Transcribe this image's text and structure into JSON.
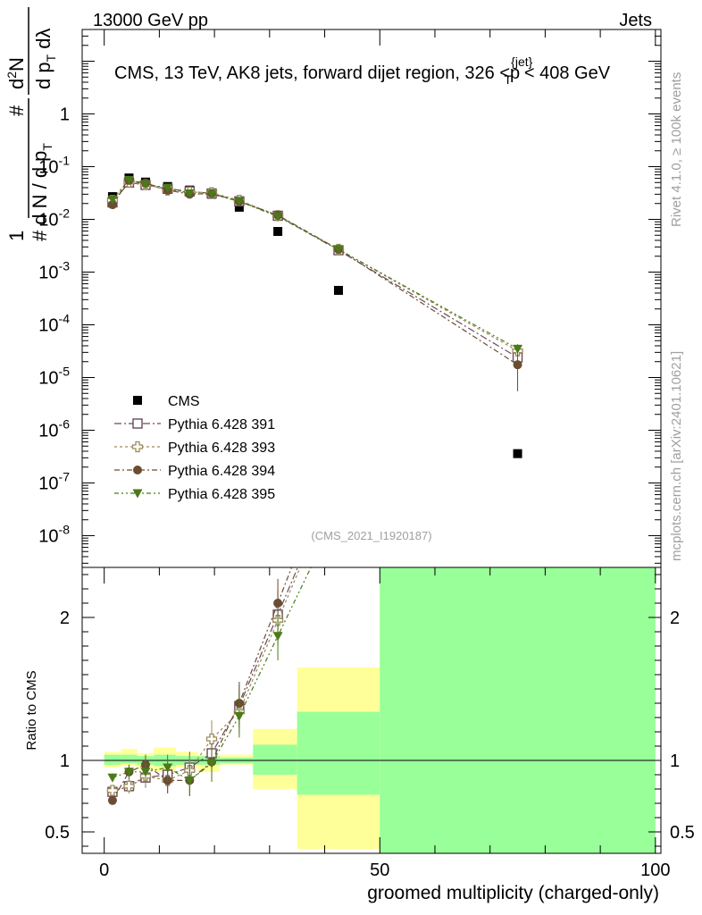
{
  "header": {
    "left": "13000 GeV pp",
    "right": "Jets"
  },
  "side_labels": {
    "rivet": "Rivet 4.1.0, ≥ 100k events",
    "mcplots": "mcplots.cern.ch [arXiv:2401.10621]"
  },
  "chart_data": [
    {
      "type": "scatter",
      "panel": "main",
      "title": "CMS, 13 TeV, AK8 jets, forward dijet region, 326 <p_T^{jet}< 408 GeV",
      "ylabel": "1/dN/dp_T d²N/dp_T dλ",
      "analysis_tag": "(CMS_2021_I1920187)",
      "xlim": [
        -4,
        101
      ],
      "ylim": [
        2.5e-09,
        40
      ],
      "log_y": true,
      "y_ticks": [
        "10^{-8}",
        "10^{-7}",
        "10^{-6}",
        "10^{-5}",
        "10^{-4}",
        "10^{-3}",
        "10^{-2}",
        "10^{-1}",
        "1"
      ],
      "legend_position": "lower-left",
      "series": [
        {
          "name": "CMS",
          "style": "square-filled",
          "color": "#000000",
          "x": [
            1.5,
            4.5,
            7.5,
            11.5,
            15.5,
            19.5,
            24.5,
            31.5,
            42.5,
            75
          ],
          "y": [
            0.027,
            0.061,
            0.051,
            0.042,
            0.036,
            0.03,
            0.017,
            0.0059,
            0.00045,
            3.6e-07
          ]
        },
        {
          "name": "Pythia 6.428 391",
          "style": "square-open",
          "color": "#6a4a5a",
          "dash": "8 3 2 3",
          "x": [
            1.5,
            4.5,
            7.5,
            11.5,
            15.5,
            19.5,
            24.5,
            31.5,
            42.5,
            75
          ],
          "y": [
            0.021,
            0.05,
            0.045,
            0.038,
            0.034,
            0.031,
            0.022,
            0.0117,
            0.0026,
            2.4e-05
          ],
          "yerr": [
            0.0012,
            0.002,
            0.002,
            0.0016,
            0.0014,
            0.0012,
            0.0009,
            0.0005,
            0.00012,
            9e-06
          ]
        },
        {
          "name": "Pythia 6.428 393",
          "style": "cross-open",
          "color": "#9b8b5a",
          "dash": "3 3",
          "x": [
            1.5,
            4.5,
            7.5,
            11.5,
            15.5,
            19.5,
            24.5,
            31.5,
            42.5,
            75
          ],
          "y": [
            0.023,
            0.051,
            0.046,
            0.036,
            0.033,
            0.032,
            0.023,
            0.0118,
            0.0027,
            3.2e-05
          ],
          "yerr": [
            0.0012,
            0.002,
            0.002,
            0.0016,
            0.0014,
            0.0012,
            0.0009,
            0.0005,
            0.00012,
            8e-06
          ]
        },
        {
          "name": "Pythia 6.428 394",
          "style": "circle-filled",
          "color": "#6b4d32",
          "dash": "6 3 2 3",
          "x": [
            1.5,
            4.5,
            7.5,
            11.5,
            15.5,
            19.5,
            24.5,
            31.5,
            42.5,
            75
          ],
          "y": [
            0.019,
            0.055,
            0.049,
            0.036,
            0.03,
            0.031,
            0.022,
            0.012,
            0.0027,
            1.75e-05
          ],
          "yerr": [
            0.0012,
            0.002,
            0.002,
            0.0016,
            0.0014,
            0.0012,
            0.0009,
            0.0005,
            0.00012,
            1.2e-05
          ]
        },
        {
          "name": "Pythia 6.428 395",
          "style": "triangle-down-filled",
          "color": "#4a7a1a",
          "dash": "5 3 2 3 2 3",
          "x": [
            1.5,
            4.5,
            7.5,
            11.5,
            15.5,
            19.5,
            24.5,
            31.5,
            42.5,
            75
          ],
          "y": [
            0.024,
            0.056,
            0.046,
            0.04,
            0.031,
            0.03,
            0.022,
            0.0113,
            0.0027,
            3.5e-05
          ],
          "yerr": [
            0.0012,
            0.002,
            0.002,
            0.0016,
            0.0014,
            0.0012,
            0.0009,
            0.0005,
            0.00012,
            8e-06
          ]
        }
      ]
    },
    {
      "type": "scatter",
      "panel": "ratio",
      "xlabel": "groomed multiplicity (charged-only)",
      "ylabel": "Ratio to CMS",
      "xlim": [
        -4,
        101
      ],
      "ylim": [
        0.35,
        2.35
      ],
      "x_ticks": [
        0,
        50,
        100
      ],
      "y_ticks": [
        0.5,
        1,
        2
      ],
      "uncertainty_bands": {
        "edges": [
          0,
          3,
          6,
          9,
          13,
          17,
          21,
          27,
          35,
          50,
          100
        ],
        "inner": [
          [
            0.97,
            1.04
          ],
          [
            0.98,
            1.04
          ],
          [
            0.97,
            1.03
          ],
          [
            0.96,
            1.04
          ],
          [
            0.97,
            1.03
          ],
          [
            0.97,
            1.03
          ],
          [
            0.98,
            1.02
          ],
          [
            0.9,
            1.11
          ],
          [
            0.76,
            1.34
          ],
          [
            0.0,
            3.0
          ]
        ],
        "outer": [
          [
            0.95,
            1.06
          ],
          [
            0.96,
            1.08
          ],
          [
            0.94,
            1.05
          ],
          [
            0.92,
            1.09
          ],
          [
            0.95,
            1.06
          ],
          [
            0.92,
            1.04
          ],
          [
            0.97,
            1.04
          ],
          [
            0.8,
            1.22
          ],
          [
            0.38,
            1.65
          ],
          [
            0.0,
            3.0
          ]
        ],
        "inner_color": "#99ff99",
        "outer_color": "#ffff99"
      },
      "series": [
        {
          "name": "Pythia 6.428 391",
          "x": [
            1.5,
            4.5,
            7.5,
            11.5,
            15.5,
            19.5,
            24.5,
            31.5
          ],
          "y": [
            0.78,
            0.82,
            0.88,
            0.9,
            0.95,
            1.05,
            1.38,
            2.02
          ]
        },
        {
          "name": "Pythia 6.428 393",
          "x": [
            1.5,
            4.5,
            7.5,
            11.5,
            15.5,
            19.5,
            24.5,
            31.5
          ],
          "y": [
            0.79,
            0.82,
            0.89,
            0.86,
            0.93,
            1.15,
            1.34,
            1.98
          ]
        },
        {
          "name": "Pythia 6.428 394",
          "x": [
            1.5,
            4.5,
            7.5,
            11.5,
            15.5,
            19.5,
            24.5,
            31.5
          ],
          "y": [
            0.72,
            0.92,
            0.97,
            0.86,
            0.86,
            0.99,
            1.4,
            2.1
          ]
        },
        {
          "name": "Pythia 6.428 395",
          "x": [
            1.5,
            4.5,
            7.5,
            11.5,
            15.5,
            19.5,
            24.5,
            31.5
          ],
          "y": [
            0.88,
            0.92,
            0.92,
            0.95,
            0.86,
            0.98,
            1.31,
            1.87
          ]
        }
      ]
    }
  ]
}
